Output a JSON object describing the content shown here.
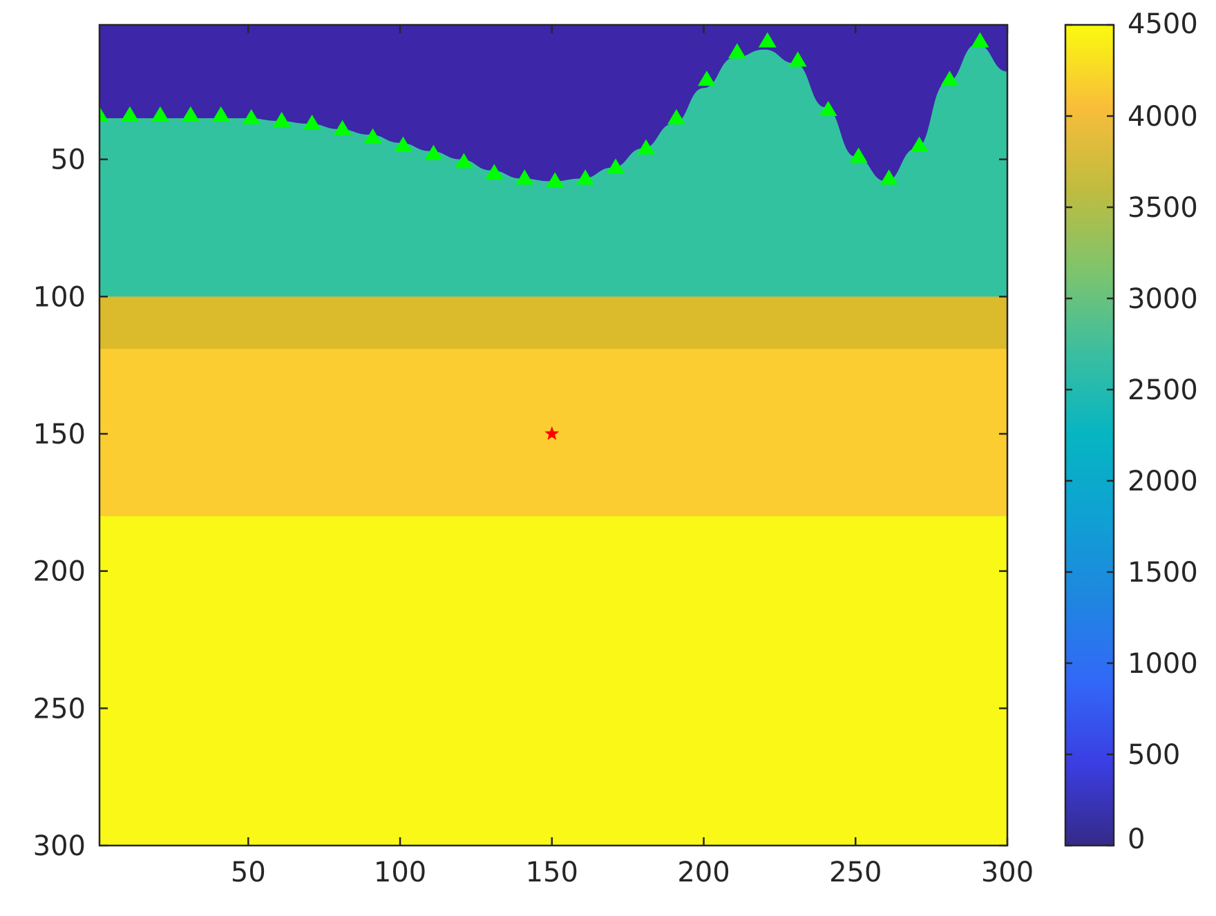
{
  "chart_data": {
    "type": "heatmap",
    "title": "",
    "xlabel": "",
    "ylabel": "",
    "xlim": [
      1,
      300
    ],
    "ylim": [
      1,
      300
    ],
    "y_reversed": true,
    "grid": false,
    "x_ticks": [
      50,
      100,
      150,
      200,
      250,
      300
    ],
    "y_ticks": [
      50,
      100,
      150,
      200,
      250,
      300
    ],
    "colorbar": {
      "location": "right",
      "colormap": "parula",
      "limits": [
        0,
        4500
      ],
      "ticks": [
        0,
        500,
        1000,
        1500,
        2000,
        2500,
        3000,
        3500,
        4000,
        4500
      ]
    },
    "layers": [
      {
        "value": 0,
        "color": "#3d26a8"
      },
      {
        "value": 2500,
        "color": "#33c29f",
        "top_depth_profile": [
          [
            1,
            35
          ],
          [
            10,
            35
          ],
          [
            20,
            35
          ],
          [
            30,
            35
          ],
          [
            40,
            35
          ],
          [
            50,
            35
          ],
          [
            60,
            36
          ],
          [
            70,
            37
          ],
          [
            80,
            39
          ],
          [
            90,
            41
          ],
          [
            100,
            44
          ],
          [
            110,
            47
          ],
          [
            120,
            50
          ],
          [
            130,
            54
          ],
          [
            140,
            57
          ],
          [
            150,
            58
          ],
          [
            160,
            57
          ],
          [
            170,
            53
          ],
          [
            180,
            46
          ],
          [
            190,
            37
          ],
          [
            200,
            24
          ],
          [
            210,
            13
          ],
          [
            220,
            10
          ],
          [
            230,
            15
          ],
          [
            240,
            31
          ],
          [
            250,
            49
          ],
          [
            260,
            58
          ],
          [
            270,
            46
          ],
          [
            280,
            22
          ],
          [
            290,
            8
          ],
          [
            300,
            18
          ]
        ]
      },
      {
        "value": 3700,
        "color": "#dbba2b",
        "top_depth": 100
      },
      {
        "value": 4000,
        "color": "#fbcd31",
        "top_depth": 119
      },
      {
        "value": 4500,
        "color": "#f9f817",
        "top_depth": 180
      }
    ],
    "receivers": {
      "marker": "triangle",
      "color": "#00ff00",
      "points": [
        [
          1,
          34
        ],
        [
          11,
          34
        ],
        [
          21,
          34
        ],
        [
          31,
          34
        ],
        [
          41,
          34
        ],
        [
          51,
          35
        ],
        [
          61,
          36
        ],
        [
          71,
          37
        ],
        [
          81,
          39
        ],
        [
          91,
          42
        ],
        [
          101,
          45
        ],
        [
          111,
          48
        ],
        [
          121,
          51
        ],
        [
          131,
          55
        ],
        [
          141,
          57
        ],
        [
          151,
          58
        ],
        [
          161,
          57
        ],
        [
          171,
          53
        ],
        [
          181,
          46
        ],
        [
          191,
          35
        ],
        [
          201,
          21
        ],
        [
          211,
          11
        ],
        [
          221,
          7
        ],
        [
          231,
          14
        ],
        [
          241,
          32
        ],
        [
          251,
          49
        ],
        [
          261,
          57
        ],
        [
          271,
          45
        ],
        [
          281,
          21
        ],
        [
          291,
          7
        ]
      ]
    },
    "source": {
      "marker": "star",
      "color": "#ff0000",
      "x": 150,
      "y": 150
    }
  }
}
